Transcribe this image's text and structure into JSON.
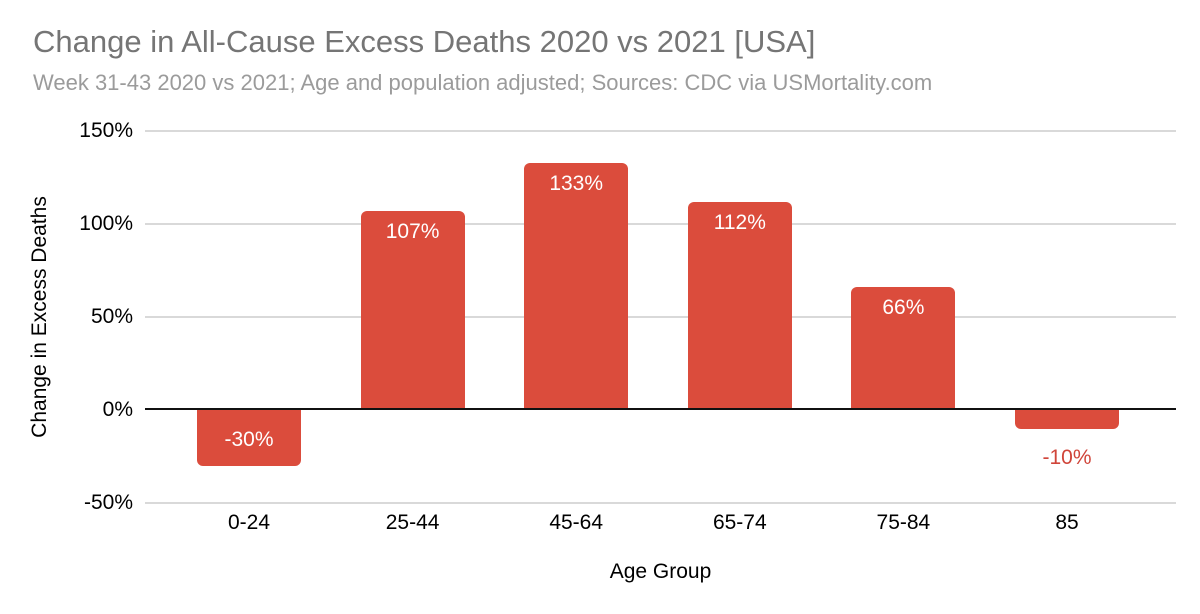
{
  "chart_data": {
    "type": "bar",
    "title": "Change in All-Cause Excess Deaths 2020 vs 2021 [USA]",
    "subtitle": "Week 31-43 2020 vs 2021; Age and population adjusted; Sources: CDC via USMortality.com",
    "categories": [
      "0-24",
      "25-44",
      "45-64",
      "65-74",
      "75-84",
      "85"
    ],
    "values": [
      -30,
      107,
      133,
      112,
      66,
      -10
    ],
    "data_labels": [
      "-30%",
      "107%",
      "133%",
      "112%",
      "66%",
      "-10%"
    ],
    "xlabel": "Age Group",
    "ylabel": "Change in Excess Deaths",
    "ylim": [
      -50,
      150
    ],
    "y_ticks": [
      150,
      100,
      50,
      0,
      -50
    ],
    "y_tick_labels": [
      "150%",
      "100%",
      "50%",
      "0%",
      "-50%"
    ],
    "grid": true,
    "legend": "none",
    "colors": {
      "bar": "#db4c3c",
      "label_inside": "#ffffff",
      "label_outside": "#d0453a",
      "gridline": "#d9d9d9",
      "zero_axis": "#111111",
      "title": "#757575",
      "subtitle": "#9b9b9b",
      "axis_text": "#000000"
    }
  }
}
